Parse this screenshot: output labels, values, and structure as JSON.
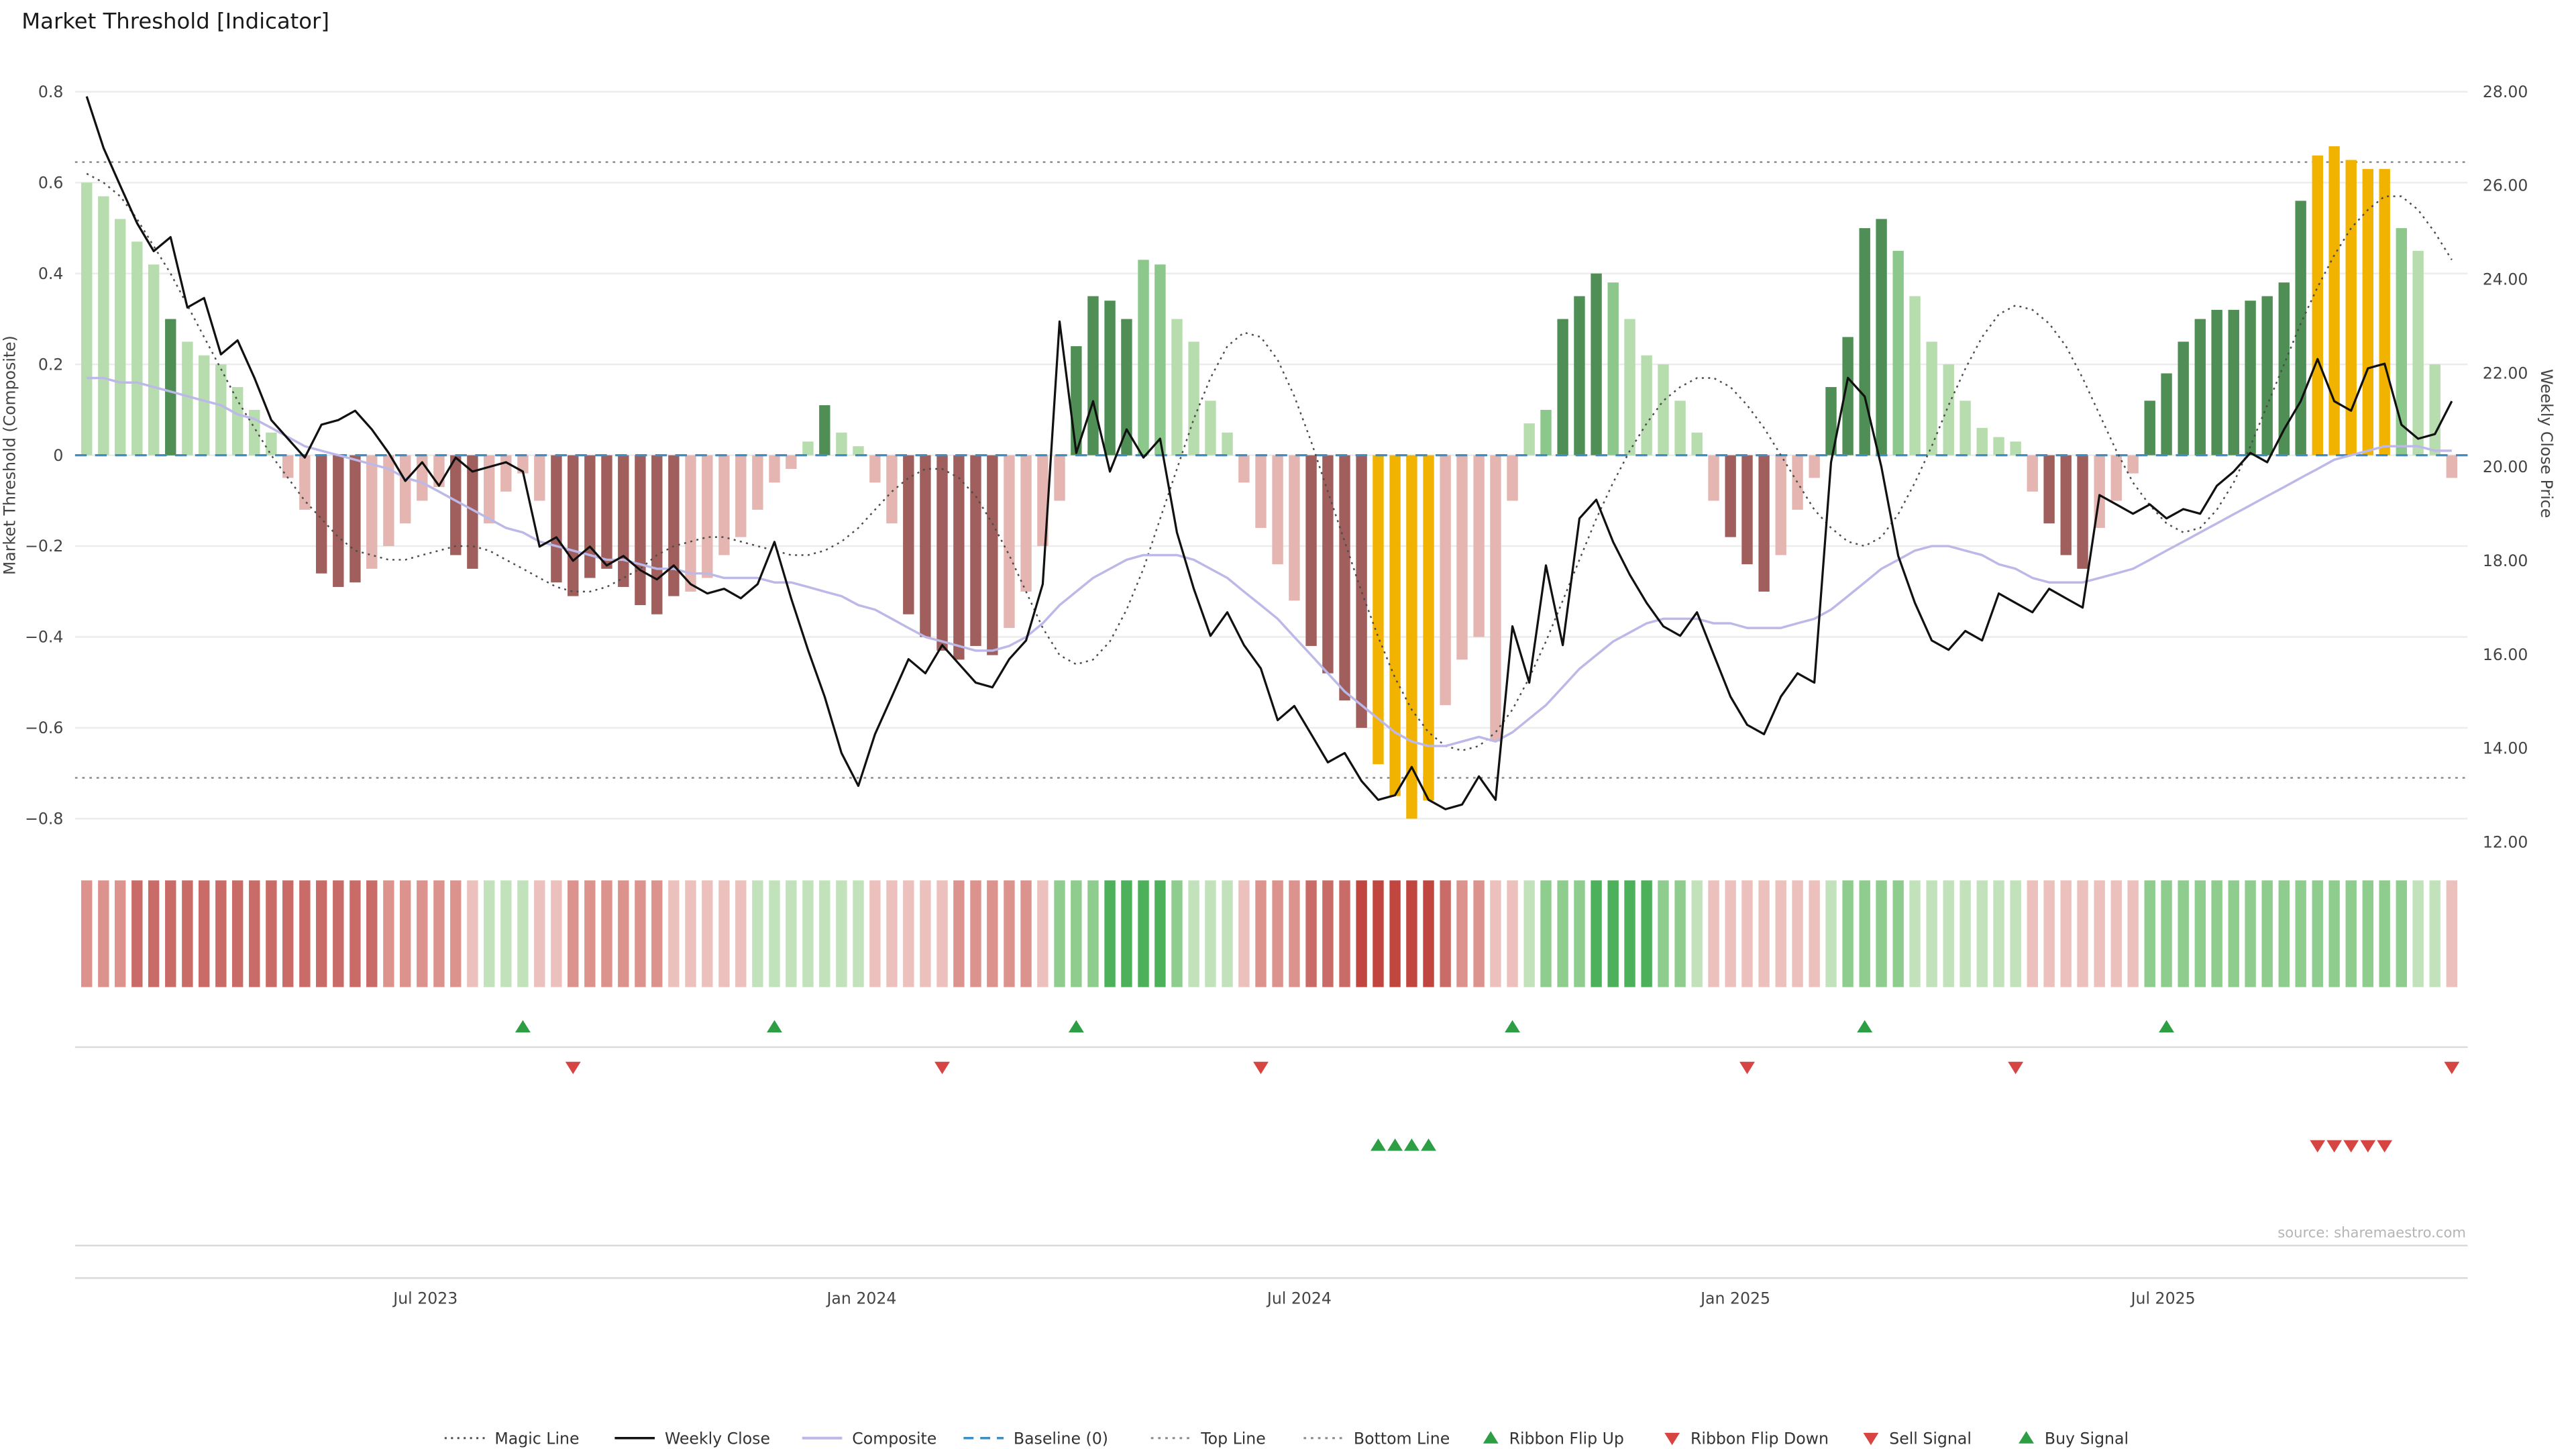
{
  "title": "Market Threshold [Indicator]",
  "source": "source: sharemaestro.com",
  "y_left": {
    "label": "Market Threshold (Composite)",
    "ticks": [
      "0.8",
      "0.6",
      "0.4",
      "0.2",
      "0",
      "−0.2",
      "−0.4",
      "−0.6",
      "−0.8"
    ],
    "tick_values": [
      0.8,
      0.6,
      0.4,
      0.2,
      0,
      -0.2,
      -0.4,
      -0.6,
      -0.8
    ]
  },
  "y_right": {
    "label": "Weekly Close Price",
    "ticks": [
      "28.00",
      "26.00",
      "24.00",
      "22.00",
      "20.00",
      "18.00",
      "16.00",
      "14.00",
      "12.00"
    ],
    "tick_values": [
      28,
      26,
      24,
      22,
      20,
      18,
      16,
      14,
      12
    ]
  },
  "x_axis": {
    "ticks": [
      {
        "label": "Jul 2023",
        "index": 20.2
      },
      {
        "label": "Jan 2024",
        "index": 46.2
      },
      {
        "label": "Jul 2024",
        "index": 72.3
      },
      {
        "label": "Jan 2025",
        "index": 98.3
      },
      {
        "label": "Jul 2025",
        "index": 123.8
      }
    ]
  },
  "legend": [
    {
      "label": "Magic Line",
      "type": "dotted-dark"
    },
    {
      "label": "Weekly Close",
      "type": "solid-black"
    },
    {
      "label": "Composite",
      "type": "solid-lavender"
    },
    {
      "label": "Baseline (0)",
      "type": "dashed-blue"
    },
    {
      "label": "Top Line",
      "type": "dotted-gray"
    },
    {
      "label": "Bottom Line",
      "type": "dotted-gray"
    },
    {
      "label": "Ribbon Flip Up",
      "type": "triangle-up-green"
    },
    {
      "label": "Ribbon Flip Down",
      "type": "triangle-down-red"
    },
    {
      "label": "Sell Signal",
      "type": "triangle-down-red"
    },
    {
      "label": "Buy Signal",
      "type": "triangle-up-green"
    }
  ],
  "colors": {
    "bar": {
      "lg": "#b7dcae",
      "mg": "#8cc78b",
      "dg": "#4f8f55",
      "pk": "#e5b6b1",
      "dr": "#a05f5c",
      "gd": "#f2b300"
    },
    "ribbon": {
      "r1": "#ecc0bc",
      "r2": "#dc938d",
      "r3": "#c96b66",
      "r4": "#c0463f",
      "g1": "#c2e2bb",
      "g2": "#8fcd8e",
      "g3": "#4db05b"
    },
    "close_line": "#111111",
    "composite_line": "#bcb8e8",
    "magic_line": "#4d4d4d",
    "baseline": "#3e8ec4",
    "guide": "#8a8a8a",
    "grid": "#ececec",
    "separator": "#d9d9d9",
    "signal_green": "#2d9e44",
    "signal_red": "#d64541",
    "title_text": "#1a1a1a",
    "tick_text": "#444444",
    "source_text": "#b5b5b5"
  },
  "chart_data": {
    "type": "mixed",
    "x_unit": "week",
    "n_points": 142,
    "ylim_left": [
      -0.85,
      0.85
    ],
    "ylim_right": [
      12,
      28
    ],
    "grid": true,
    "legend_position": "bottom-center",
    "reference_lines": {
      "baseline": 0,
      "top_line": 0.645,
      "bottom_line": -0.71
    },
    "series": [
      {
        "name": "Market Threshold",
        "type": "bar",
        "axis": "left",
        "values": [
          0.6,
          0.57,
          0.52,
          0.47,
          0.42,
          0.3,
          0.25,
          0.22,
          0.2,
          0.15,
          0.1,
          0.05,
          -0.05,
          -0.12,
          -0.26,
          -0.29,
          -0.28,
          -0.25,
          -0.2,
          -0.15,
          -0.1,
          -0.07,
          -0.22,
          -0.25,
          -0.15,
          -0.08,
          -0.04,
          -0.1,
          -0.28,
          -0.31,
          -0.27,
          -0.25,
          -0.29,
          -0.33,
          -0.35,
          -0.31,
          -0.3,
          -0.27,
          -0.22,
          -0.18,
          -0.12,
          -0.06,
          -0.03,
          0.03,
          0.11,
          0.05,
          0.02,
          -0.06,
          -0.15,
          -0.35,
          -0.4,
          -0.43,
          -0.45,
          -0.42,
          -0.44,
          -0.38,
          -0.3,
          -0.2,
          -0.1,
          0.24,
          0.35,
          0.34,
          0.3,
          0.43,
          0.42,
          0.3,
          0.25,
          0.12,
          0.05,
          -0.06,
          -0.16,
          -0.24,
          -0.32,
          -0.42,
          -0.48,
          -0.54,
          -0.6,
          -0.68,
          -0.75,
          -0.8,
          -0.76,
          -0.55,
          -0.45,
          -0.4,
          -0.63,
          -0.1,
          0.07,
          0.1,
          0.3,
          0.35,
          0.4,
          0.38,
          0.3,
          0.22,
          0.2,
          0.12,
          0.05,
          -0.1,
          -0.18,
          -0.24,
          -0.3,
          -0.22,
          -0.12,
          -0.05,
          0.15,
          0.26,
          0.5,
          0.52,
          0.45,
          0.35,
          0.25,
          0.2,
          0.12,
          0.06,
          0.04,
          0.03,
          -0.08,
          -0.15,
          -0.22,
          -0.25,
          -0.16,
          -0.1,
          -0.04,
          0.12,
          0.18,
          0.25,
          0.3,
          0.32,
          0.32,
          0.34,
          0.35,
          0.38,
          0.56,
          0.66,
          0.68,
          0.65,
          0.63,
          0.63,
          0.5,
          0.45,
          0.2,
          -0.05
        ],
        "colors": [
          "lg",
          "lg",
          "lg",
          "lg",
          "lg",
          "dg",
          "lg",
          "lg",
          "lg",
          "lg",
          "lg",
          "lg",
          "pk",
          "pk",
          "dr",
          "dr",
          "dr",
          "pk",
          "pk",
          "pk",
          "pk",
          "pk",
          "dr",
          "dr",
          "pk",
          "pk",
          "pk",
          "pk",
          "dr",
          "dr",
          "dr",
          "dr",
          "dr",
          "dr",
          "dr",
          "dr",
          "pk",
          "pk",
          "pk",
          "pk",
          "pk",
          "pk",
          "pk",
          "lg",
          "dg",
          "lg",
          "lg",
          "pk",
          "pk",
          "dr",
          "dr",
          "dr",
          "dr",
          "dr",
          "dr",
          "pk",
          "pk",
          "pk",
          "pk",
          "dg",
          "dg",
          "dg",
          "dg",
          "mg",
          "mg",
          "lg",
          "lg",
          "lg",
          "lg",
          "pk",
          "pk",
          "pk",
          "pk",
          "dr",
          "dr",
          "dr",
          "dr",
          "gd",
          "gd",
          "gd",
          "gd",
          "pk",
          "pk",
          "pk",
          "pk",
          "pk",
          "lg",
          "mg",
          "dg",
          "dg",
          "dg",
          "mg",
          "lg",
          "lg",
          "lg",
          "lg",
          "lg",
          "pk",
          "dr",
          "dr",
          "dr",
          "pk",
          "pk",
          "pk",
          "dg",
          "dg",
          "dg",
          "dg",
          "mg",
          "lg",
          "lg",
          "lg",
          "lg",
          "lg",
          "lg",
          "lg",
          "pk",
          "dr",
          "dr",
          "dr",
          "pk",
          "pk",
          "pk",
          "dg",
          "dg",
          "dg",
          "dg",
          "dg",
          "dg",
          "dg",
          "dg",
          "dg",
          "dg",
          "gd",
          "gd",
          "gd",
          "gd",
          "gd",
          "mg",
          "lg",
          "lg",
          "pk"
        ]
      },
      {
        "name": "Weekly Close",
        "type": "line",
        "axis": "right",
        "values": [
          27.9,
          26.8,
          26.0,
          25.2,
          24.6,
          24.9,
          23.4,
          23.6,
          22.4,
          22.7,
          21.9,
          21.0,
          20.6,
          20.2,
          20.9,
          21.0,
          21.2,
          20.8,
          20.3,
          19.7,
          20.1,
          19.6,
          20.2,
          19.9,
          20.0,
          20.1,
          19.9,
          18.3,
          18.5,
          18.0,
          18.3,
          17.9,
          18.1,
          17.8,
          17.6,
          17.9,
          17.5,
          17.3,
          17.4,
          17.2,
          17.5,
          18.4,
          17.2,
          16.1,
          15.1,
          13.9,
          13.2,
          14.3,
          15.1,
          15.9,
          15.6,
          16.2,
          15.8,
          15.4,
          15.3,
          15.9,
          16.3,
          17.5,
          23.1,
          20.3,
          21.4,
          19.9,
          20.8,
          20.2,
          20.6,
          18.6,
          17.4,
          16.4,
          16.9,
          16.2,
          15.7,
          14.6,
          14.9,
          14.3,
          13.7,
          13.9,
          13.3,
          12.9,
          13.0,
          13.6,
          12.9,
          12.7,
          12.8,
          13.4,
          12.9,
          16.6,
          15.4,
          17.9,
          16.2,
          18.9,
          19.3,
          18.4,
          17.7,
          17.1,
          16.6,
          16.4,
          16.9,
          16.0,
          15.1,
          14.5,
          14.3,
          15.1,
          15.6,
          15.4,
          20.1,
          21.9,
          21.5,
          20.0,
          18.1,
          17.1,
          16.3,
          16.1,
          16.5,
          16.3,
          17.3,
          17.1,
          16.9,
          17.4,
          17.2,
          17.0,
          19.4,
          19.2,
          19.0,
          19.2,
          18.9,
          19.1,
          19.0,
          19.6,
          19.9,
          20.3,
          20.1,
          20.8,
          21.4,
          22.3,
          21.4,
          21.2,
          22.1,
          22.2,
          20.9,
          20.6,
          20.7,
          21.4
        ]
      },
      {
        "name": "Composite",
        "type": "line",
        "axis": "left",
        "values": [
          0.17,
          0.17,
          0.16,
          0.16,
          0.15,
          0.14,
          0.13,
          0.12,
          0.11,
          0.09,
          0.08,
          0.06,
          0.04,
          0.02,
          0.01,
          0.0,
          -0.01,
          -0.02,
          -0.03,
          -0.05,
          -0.06,
          -0.08,
          -0.1,
          -0.12,
          -0.14,
          -0.16,
          -0.17,
          -0.19,
          -0.2,
          -0.21,
          -0.22,
          -0.23,
          -0.23,
          -0.24,
          -0.25,
          -0.25,
          -0.26,
          -0.26,
          -0.27,
          -0.27,
          -0.27,
          -0.28,
          -0.28,
          -0.29,
          -0.3,
          -0.31,
          -0.33,
          -0.34,
          -0.36,
          -0.38,
          -0.4,
          -0.41,
          -0.42,
          -0.43,
          -0.43,
          -0.42,
          -0.4,
          -0.37,
          -0.33,
          -0.3,
          -0.27,
          -0.25,
          -0.23,
          -0.22,
          -0.22,
          -0.22,
          -0.23,
          -0.25,
          -0.27,
          -0.3,
          -0.33,
          -0.36,
          -0.4,
          -0.44,
          -0.48,
          -0.52,
          -0.55,
          -0.58,
          -0.61,
          -0.63,
          -0.64,
          -0.64,
          -0.63,
          -0.62,
          -0.63,
          -0.61,
          -0.58,
          -0.55,
          -0.51,
          -0.47,
          -0.44,
          -0.41,
          -0.39,
          -0.37,
          -0.36,
          -0.36,
          -0.36,
          -0.37,
          -0.37,
          -0.38,
          -0.38,
          -0.38,
          -0.37,
          -0.36,
          -0.34,
          -0.31,
          -0.28,
          -0.25,
          -0.23,
          -0.21,
          -0.2,
          -0.2,
          -0.21,
          -0.22,
          -0.24,
          -0.25,
          -0.27,
          -0.28,
          -0.28,
          -0.28,
          -0.27,
          -0.26,
          -0.25,
          -0.23,
          -0.21,
          -0.19,
          -0.17,
          -0.15,
          -0.13,
          -0.11,
          -0.09,
          -0.07,
          -0.05,
          -0.03,
          -0.01,
          0.0,
          0.01,
          0.02,
          0.02,
          0.02,
          0.01,
          0.01
        ]
      },
      {
        "name": "Magic Line",
        "type": "line",
        "axis": "left",
        "values": [
          0.62,
          0.6,
          0.57,
          0.52,
          0.46,
          0.4,
          0.33,
          0.26,
          0.19,
          0.12,
          0.06,
          0.0,
          -0.05,
          -0.1,
          -0.14,
          -0.18,
          -0.21,
          -0.22,
          -0.23,
          -0.23,
          -0.22,
          -0.21,
          -0.2,
          -0.2,
          -0.21,
          -0.23,
          -0.25,
          -0.27,
          -0.29,
          -0.3,
          -0.3,
          -0.29,
          -0.27,
          -0.25,
          -0.22,
          -0.2,
          -0.19,
          -0.18,
          -0.18,
          -0.19,
          -0.2,
          -0.21,
          -0.22,
          -0.22,
          -0.21,
          -0.19,
          -0.16,
          -0.12,
          -0.08,
          -0.05,
          -0.03,
          -0.03,
          -0.05,
          -0.09,
          -0.15,
          -0.22,
          -0.3,
          -0.38,
          -0.44,
          -0.46,
          -0.45,
          -0.41,
          -0.34,
          -0.25,
          -0.14,
          -0.03,
          0.08,
          0.17,
          0.24,
          0.27,
          0.26,
          0.21,
          0.13,
          0.03,
          -0.08,
          -0.19,
          -0.3,
          -0.4,
          -0.49,
          -0.56,
          -0.61,
          -0.64,
          -0.65,
          -0.64,
          -0.61,
          -0.56,
          -0.49,
          -0.41,
          -0.32,
          -0.23,
          -0.14,
          -0.06,
          0.01,
          0.07,
          0.12,
          0.15,
          0.17,
          0.17,
          0.15,
          0.11,
          0.06,
          0.0,
          -0.06,
          -0.12,
          -0.16,
          -0.19,
          -0.2,
          -0.18,
          -0.13,
          -0.06,
          0.02,
          0.11,
          0.19,
          0.26,
          0.31,
          0.33,
          0.32,
          0.29,
          0.24,
          0.17,
          0.09,
          0.01,
          -0.06,
          -0.11,
          -0.15,
          -0.17,
          -0.16,
          -0.12,
          -0.06,
          0.02,
          0.11,
          0.2,
          0.29,
          0.37,
          0.44,
          0.5,
          0.54,
          0.57,
          0.57,
          0.54,
          0.49,
          0.43
        ]
      }
    ],
    "ribbon": [
      "r2",
      "r2",
      "r2",
      "r3",
      "r3",
      "r3",
      "r3",
      "r3",
      "r3",
      "r3",
      "r3",
      "r3",
      "r3",
      "r3",
      "r3",
      "r3",
      "r3",
      "r3",
      "r2",
      "r2",
      "r2",
      "r2",
      "r2",
      "r1",
      "g1",
      "g1",
      "g1",
      "r1",
      "r1",
      "r2",
      "r2",
      "r2",
      "r2",
      "r2",
      "r2",
      "r1",
      "r1",
      "r1",
      "r1",
      "r1",
      "g1",
      "g1",
      "g1",
      "g1",
      "g1",
      "g1",
      "g1",
      "r1",
      "r1",
      "r1",
      "r1",
      "r1",
      "r2",
      "r2",
      "r2",
      "r2",
      "r2",
      "r1",
      "g2",
      "g2",
      "g2",
      "g3",
      "g3",
      "g3",
      "g3",
      "g2",
      "g1",
      "g1",
      "g1",
      "r1",
      "r2",
      "r2",
      "r2",
      "r3",
      "r3",
      "r3",
      "r4",
      "r4",
      "r4",
      "r4",
      "r4",
      "r3",
      "r2",
      "r2",
      "r1",
      "r1",
      "g1",
      "g2",
      "g2",
      "g2",
      "g3",
      "g3",
      "g3",
      "g3",
      "g2",
      "g2",
      "g1",
      "r1",
      "r1",
      "r1",
      "r1",
      "r1",
      "r1",
      "r1",
      "g1",
      "g2",
      "g2",
      "g2",
      "g2",
      "g1",
      "g1",
      "g1",
      "g1",
      "g1",
      "g1",
      "g1",
      "r1",
      "r1",
      "r1",
      "r1",
      "r1",
      "r1",
      "r1",
      "g2",
      "g2",
      "g2",
      "g2",
      "g2",
      "g2",
      "g2",
      "g2",
      "g2",
      "g2",
      "g2",
      "g2",
      "g2",
      "g2",
      "g2",
      "g2",
      "g1",
      "g1",
      "r1"
    ],
    "signals": {
      "ribbon_flip_up": [
        26,
        41,
        59,
        85,
        106,
        124
      ],
      "ribbon_flip_down": [
        29,
        51,
        70,
        99,
        115,
        141
      ],
      "buy": [
        77,
        78,
        79,
        80
      ],
      "sell": [
        133,
        134,
        135,
        136,
        137
      ]
    }
  }
}
